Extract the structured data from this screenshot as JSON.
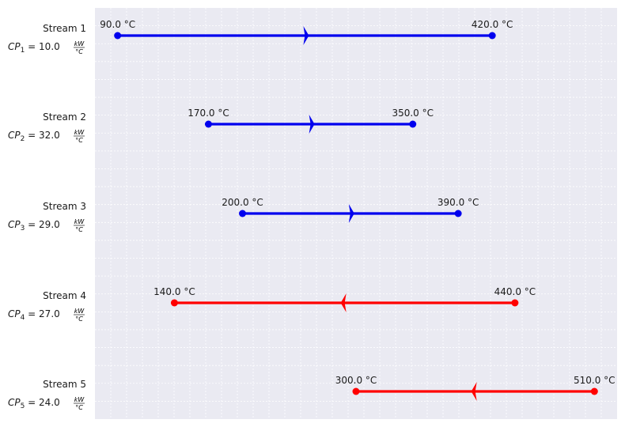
{
  "chart_data": {
    "type": "stream-diagram",
    "temperature_unit": "°C",
    "cp_unit": {
      "numerator": "kW",
      "denominator": "°C"
    },
    "xlim": [
      70,
      530
    ],
    "grid": true,
    "streams": [
      {
        "name": "Stream 1",
        "cp_symbol": "CP",
        "cp_index": "1",
        "cp_value": "10.0",
        "t_supply": 90.0,
        "t_target": 420.0,
        "t_low_label": "90.0 °C",
        "t_high_label": "420.0 °C",
        "kind": "cold",
        "color": "#0000ee"
      },
      {
        "name": "Stream 2",
        "cp_symbol": "CP",
        "cp_index": "2",
        "cp_value": "32.0",
        "t_supply": 170.0,
        "t_target": 350.0,
        "t_low_label": "170.0 °C",
        "t_high_label": "350.0 °C",
        "kind": "cold",
        "color": "#0000ee"
      },
      {
        "name": "Stream 3",
        "cp_symbol": "CP",
        "cp_index": "3",
        "cp_value": "29.0",
        "t_supply": 200.0,
        "t_target": 390.0,
        "t_low_label": "200.0 °C",
        "t_high_label": "390.0 °C",
        "kind": "cold",
        "color": "#0000ee"
      },
      {
        "name": "Stream 4",
        "cp_symbol": "CP",
        "cp_index": "4",
        "cp_value": "27.0",
        "t_supply": 440.0,
        "t_target": 140.0,
        "t_low_label": "140.0 °C",
        "t_high_label": "440.0 °C",
        "kind": "hot",
        "color": "#ff0000"
      },
      {
        "name": "Stream 5",
        "cp_symbol": "CP",
        "cp_index": "5",
        "cp_value": "24.0",
        "t_supply": 510.0,
        "t_target": 300.0,
        "t_low_label": "300.0 °C",
        "t_high_label": "510.0 °C",
        "kind": "hot",
        "color": "#ff0000"
      }
    ]
  },
  "colors": {
    "plot_background": "#eaeaf2",
    "grid": "#ffffff"
  }
}
